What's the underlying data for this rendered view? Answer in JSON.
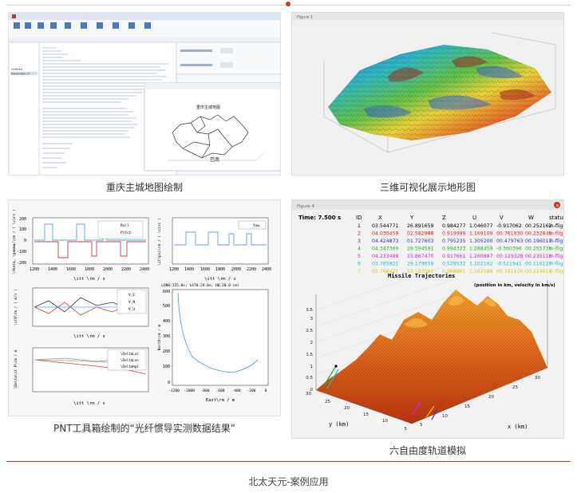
{
  "panels": [
    {
      "id": "p1",
      "caption": "重庆主城地图绘制"
    },
    {
      "id": "p2",
      "caption": "三维可视化展示地形图"
    },
    {
      "id": "p3",
      "caption": "PNT工具箱绘制的“光纤惯导实测数据结果”"
    },
    {
      "id": "p4",
      "caption": "六自由度轨道模拟"
    }
  ],
  "footer": "北太天元-案例应用",
  "p1": {
    "map_title": "重庆主城地图",
    "map_label": "巴南",
    "workspace_items": [
      "Untitled",
      "baiwenjie1.m"
    ]
  },
  "p2": {
    "window_title": "Figure 1"
  },
  "p3": {
    "legend_top_left": [
      "Roll",
      "Pitch"
    ],
    "legend_top_right": "Yaw",
    "legend_mid": [
      "V_E",
      "V_N",
      "V_U"
    ],
    "legend_bottom": [
      "\\DeltaLat",
      "\\DeltaLon",
      "\\DeltaHgt"
    ],
    "header_mid": "LON0:115.0x; LAT0:29.0x; H0:20.0 (m)",
    "xlabel": "\\itt \\rm / s",
    "ylabel_top_left": "\\theta, \\gamma/\\rm / ( \\circ )",
    "ylabel_top_right": "\\it\\psi\\rm / ( \\circ )",
    "ylabel_mid": "\\itV\\rm / ( m/s )",
    "ylabel_bottom": "\\Delta\\it P\\rm / m",
    "ylabel_traj": "North\\rm / m",
    "xlabel_traj": "East\\rm / m",
    "xticks_time": [
      "1200",
      "1400",
      "1600",
      "1800",
      "2000",
      "2200",
      "2400"
    ],
    "yticks_att": [
      "200",
      "100",
      "0",
      "-100",
      "-200"
    ],
    "xticks_east": [
      "-1200",
      "-1000",
      "-800",
      "-600",
      "-400",
      "-200",
      "0"
    ],
    "yticks_north": [
      "600",
      "500",
      "400",
      "300",
      "200",
      "100",
      "0"
    ]
  },
  "p4": {
    "window_title": "Figure 4",
    "time_label": "Time: 7.500 s",
    "table_headers": [
      "ID",
      "X",
      "Y",
      "Z",
      "U",
      "V",
      "W",
      "status"
    ],
    "table_rows": [
      {
        "id": "1",
        "x": "03.544771",
        "y": "26.891659",
        "z": "0.984277",
        "u": "1.046077",
        "v": "-0.917062",
        "w": "00.252162",
        "s": "in-fligh",
        "color": "#000000"
      },
      {
        "id": "2",
        "x": "04.030459",
        "y": "02.582988",
        "z": "0.919999",
        "u": "1.169109",
        "v": "00.761930",
        "w": "00.232849",
        "s": "in-fligh",
        "color": "#e0201c"
      },
      {
        "id": "3",
        "x": "04.424873",
        "y": "01.727603",
        "z": "0.795235",
        "u": "1.305200",
        "v": "00.479763",
        "w": "00.196017",
        "s": "in-fligh",
        "color": "#2a37c8"
      },
      {
        "id": "4",
        "x": "04.347369",
        "y": "29.594591",
        "z": "0.994323",
        "u": "1.288459",
        "v": "-0.360396",
        "w": "00.255736",
        "s": "in-fligh",
        "color": "#1fb81f"
      },
      {
        "id": "5",
        "x": "04.233488",
        "y": "15.867470",
        "z": "0.917661",
        "u": "1.260887",
        "v": "00.129328",
        "w": "00.235116",
        "s": "in-fligh",
        "color": "#d81fd8"
      },
      {
        "id": "6",
        "x": "03.765921",
        "y": "29.179659",
        "z": "0.529532",
        "u": "1.102162",
        "v": "-0.521941",
        "w": "00.116127",
        "s": "in-fligh",
        "color": "#19c2c2"
      },
      {
        "id": "7",
        "x": "03.768421",
        "y": "13.183961",
        "z": "0.968861",
        "u": "1.162188",
        "v": "00.181126",
        "w": "00.224614",
        "s": "in-fligh",
        "color": "#e6c21a"
      }
    ],
    "plot_title": "Missile Trajectories",
    "plot_note": "(position in km, velocity in km/s)",
    "zticks": [
      "3.5",
      "3",
      "2.5",
      "2",
      "1.5",
      "1",
      "0.5",
      "0"
    ],
    "xlabel": "x (km)",
    "ylabel": "y (km)",
    "xticks": [
      "5",
      "10",
      "15",
      "20",
      "25",
      "30"
    ],
    "yticks": [
      "30",
      "25",
      "20",
      "15",
      "10",
      "5"
    ]
  }
}
